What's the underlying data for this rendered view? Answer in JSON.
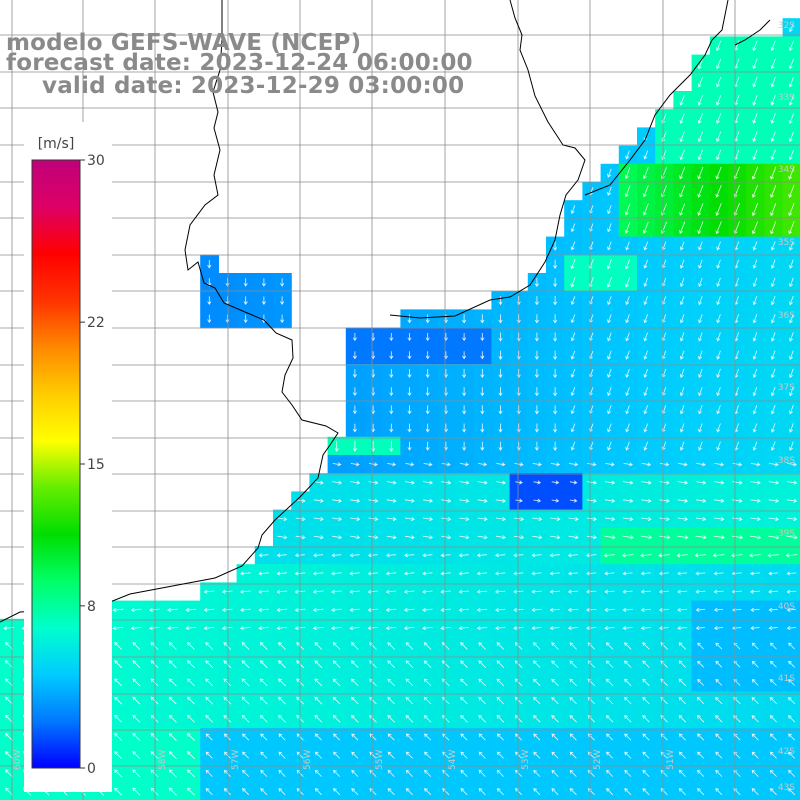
{
  "titles": {
    "model": "modelo GEFS-WAVE (NCEP)",
    "forecast": "forecast date: 2023-12-24 06:00:00",
    "valid": "valid date: 2023-12-29 03:00:00"
  },
  "colorbar": {
    "units": "[m/s]",
    "ticks": [
      {
        "value": 30,
        "label": "30"
      },
      {
        "value": 22,
        "label": "22"
      },
      {
        "value": 15,
        "label": "15"
      },
      {
        "value": 8,
        "label": "8"
      },
      {
        "value": 0,
        "label": "0"
      }
    ],
    "min": 0,
    "max": 30,
    "colors": [
      "#0000ff",
      "#0078ff",
      "#00ccff",
      "#00ffcc",
      "#00ff66",
      "#00dd00",
      "#66ee00",
      "#ffff00",
      "#ffcc00",
      "#ff8800",
      "#ff3300",
      "#ff0000",
      "#dd0066",
      "#c0007a"
    ]
  },
  "graticule": {
    "lat_labels": [
      "32S",
      "33S",
      "34S",
      "35S",
      "36S",
      "37S",
      "38S",
      "39S",
      "40S",
      "41S",
      "42S",
      "43S"
    ],
    "lon_labels": [
      "60W",
      "59W",
      "58W",
      "57W",
      "56W",
      "55W",
      "54W",
      "53W",
      "52W",
      "51W"
    ],
    "color": "#8c8c8c"
  },
  "map": {
    "land_color": "#ffffff",
    "coast_color": "#000000",
    "arrow_color": "#ffffff"
  }
}
